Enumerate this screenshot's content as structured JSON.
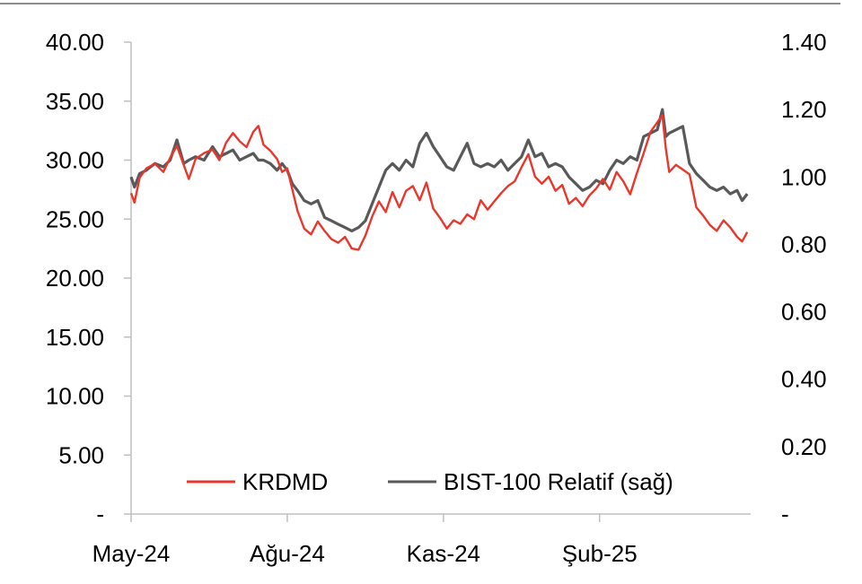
{
  "chart_data": {
    "type": "line",
    "title": "",
    "xlabel": "",
    "ylabel": "",
    "grid": false,
    "legend_position": "bottom",
    "x_ticks": [
      "May-24",
      "Ağu-24",
      "Kas-24",
      "Şub-25"
    ],
    "x_tick_dates": [
      "2024-05-01",
      "2024-08-01",
      "2024-11-01",
      "2025-02-01"
    ],
    "x_range": [
      "2024-05-01",
      "2025-05-01"
    ],
    "y_left": {
      "range": [
        0,
        40
      ],
      "tick_values": [
        0,
        5,
        10,
        15,
        20,
        25,
        30,
        35,
        40
      ],
      "tick_labels": [
        "-",
        "5.00",
        "10.00",
        "15.00",
        "20.00",
        "25.00",
        "30.00",
        "35.00",
        "40.00"
      ]
    },
    "y_right": {
      "range": [
        0,
        1.4
      ],
      "tick_values": [
        0,
        0.2,
        0.4,
        0.6,
        0.8,
        1.0,
        1.2,
        1.4
      ],
      "tick_labels": [
        "-",
        "0.20",
        "0.40",
        "0.60",
        "0.80",
        "1.00",
        "1.20",
        "1.40"
      ]
    },
    "series": [
      {
        "name": "KRDMD",
        "axis": "left",
        "color": "#e8372c",
        "points": [
          [
            "2024-05-01",
            27.2
          ],
          [
            "2024-05-03",
            26.4
          ],
          [
            "2024-05-06",
            28.5
          ],
          [
            "2024-05-10",
            29.3
          ],
          [
            "2024-05-15",
            29.7
          ],
          [
            "2024-05-20",
            29.0
          ],
          [
            "2024-05-24",
            30.2
          ],
          [
            "2024-05-28",
            31.2
          ],
          [
            "2024-06-01",
            29.6
          ],
          [
            "2024-06-04",
            28.4
          ],
          [
            "2024-06-08",
            30.1
          ],
          [
            "2024-06-13",
            30.6
          ],
          [
            "2024-06-18",
            30.9
          ],
          [
            "2024-06-22",
            30.0
          ],
          [
            "2024-06-26",
            31.5
          ],
          [
            "2024-06-30",
            32.3
          ],
          [
            "2024-07-04",
            31.6
          ],
          [
            "2024-07-08",
            31.1
          ],
          [
            "2024-07-12",
            32.4
          ],
          [
            "2024-07-15",
            32.9
          ],
          [
            "2024-07-18",
            31.3
          ],
          [
            "2024-07-22",
            30.8
          ],
          [
            "2024-07-26",
            30.1
          ],
          [
            "2024-07-29",
            29.0
          ],
          [
            "2024-08-01",
            29.3
          ],
          [
            "2024-08-04",
            27.5
          ],
          [
            "2024-08-07",
            25.7
          ],
          [
            "2024-08-11",
            24.2
          ],
          [
            "2024-08-15",
            23.7
          ],
          [
            "2024-08-19",
            24.8
          ],
          [
            "2024-08-23",
            24.0
          ],
          [
            "2024-08-27",
            23.3
          ],
          [
            "2024-08-31",
            23.0
          ],
          [
            "2024-09-04",
            23.5
          ],
          [
            "2024-09-08",
            22.5
          ],
          [
            "2024-09-12",
            22.4
          ],
          [
            "2024-09-16",
            23.6
          ],
          [
            "2024-09-20",
            25.2
          ],
          [
            "2024-09-24",
            26.5
          ],
          [
            "2024-09-28",
            25.6
          ],
          [
            "2024-10-02",
            27.3
          ],
          [
            "2024-10-06",
            26.0
          ],
          [
            "2024-10-10",
            27.4
          ],
          [
            "2024-10-14",
            27.8
          ],
          [
            "2024-10-18",
            26.6
          ],
          [
            "2024-10-22",
            28.1
          ],
          [
            "2024-10-26",
            25.9
          ],
          [
            "2024-10-30",
            25.1
          ],
          [
            "2024-11-03",
            24.2
          ],
          [
            "2024-11-07",
            24.9
          ],
          [
            "2024-11-11",
            24.6
          ],
          [
            "2024-11-15",
            25.4
          ],
          [
            "2024-11-19",
            25.0
          ],
          [
            "2024-11-23",
            26.6
          ],
          [
            "2024-11-27",
            25.8
          ],
          [
            "2024-12-01",
            26.5
          ],
          [
            "2024-12-05",
            27.2
          ],
          [
            "2024-12-09",
            27.8
          ],
          [
            "2024-12-13",
            28.2
          ],
          [
            "2024-12-17",
            29.4
          ],
          [
            "2024-12-21",
            30.5
          ],
          [
            "2024-12-25",
            28.6
          ],
          [
            "2024-12-29",
            28.0
          ],
          [
            "2025-01-02",
            28.6
          ],
          [
            "2025-01-06",
            27.4
          ],
          [
            "2025-01-10",
            27.9
          ],
          [
            "2025-01-14",
            26.3
          ],
          [
            "2025-01-18",
            26.8
          ],
          [
            "2025-01-22",
            26.1
          ],
          [
            "2025-01-26",
            27.0
          ],
          [
            "2025-01-30",
            27.6
          ],
          [
            "2025-02-03",
            28.4
          ],
          [
            "2025-02-07",
            27.5
          ],
          [
            "2025-02-11",
            29.0
          ],
          [
            "2025-02-15",
            28.2
          ],
          [
            "2025-02-19",
            27.1
          ],
          [
            "2025-02-23",
            28.9
          ],
          [
            "2025-02-27",
            30.6
          ],
          [
            "2025-03-03",
            32.4
          ],
          [
            "2025-03-07",
            33.2
          ],
          [
            "2025-03-10",
            33.8
          ],
          [
            "2025-03-12",
            31.0
          ],
          [
            "2025-03-14",
            29.0
          ],
          [
            "2025-03-18",
            29.6
          ],
          [
            "2025-03-22",
            29.2
          ],
          [
            "2025-03-26",
            28.8
          ],
          [
            "2025-03-30",
            26.0
          ],
          [
            "2025-04-03",
            25.3
          ],
          [
            "2025-04-07",
            24.5
          ],
          [
            "2025-04-11",
            24.0
          ],
          [
            "2025-04-15",
            24.9
          ],
          [
            "2025-04-19",
            24.3
          ],
          [
            "2025-04-23",
            23.5
          ],
          [
            "2025-04-26",
            23.1
          ],
          [
            "2025-04-29",
            23.9
          ]
        ]
      },
      {
        "name": "BIST-100 Relatif (sağ)",
        "axis": "right",
        "color": "#595959",
        "points": [
          [
            "2024-05-01",
            1.0
          ],
          [
            "2024-05-03",
            0.97
          ],
          [
            "2024-05-06",
            1.01
          ],
          [
            "2024-05-10",
            1.02
          ],
          [
            "2024-05-15",
            1.04
          ],
          [
            "2024-05-20",
            1.03
          ],
          [
            "2024-05-24",
            1.05
          ],
          [
            "2024-05-28",
            1.11
          ],
          [
            "2024-06-01",
            1.04
          ],
          [
            "2024-06-04",
            1.05
          ],
          [
            "2024-06-08",
            1.06
          ],
          [
            "2024-06-13",
            1.05
          ],
          [
            "2024-06-18",
            1.09
          ],
          [
            "2024-06-22",
            1.06
          ],
          [
            "2024-06-26",
            1.07
          ],
          [
            "2024-06-30",
            1.08
          ],
          [
            "2024-07-04",
            1.05
          ],
          [
            "2024-07-08",
            1.06
          ],
          [
            "2024-07-12",
            1.07
          ],
          [
            "2024-07-15",
            1.05
          ],
          [
            "2024-07-18",
            1.05
          ],
          [
            "2024-07-22",
            1.04
          ],
          [
            "2024-07-26",
            1.02
          ],
          [
            "2024-07-29",
            1.04
          ],
          [
            "2024-08-01",
            1.02
          ],
          [
            "2024-08-04",
            0.98
          ],
          [
            "2024-08-07",
            0.96
          ],
          [
            "2024-08-11",
            0.93
          ],
          [
            "2024-08-15",
            0.92
          ],
          [
            "2024-08-19",
            0.93
          ],
          [
            "2024-08-23",
            0.88
          ],
          [
            "2024-08-27",
            0.87
          ],
          [
            "2024-08-31",
            0.86
          ],
          [
            "2024-09-04",
            0.85
          ],
          [
            "2024-09-08",
            0.84
          ],
          [
            "2024-09-12",
            0.85
          ],
          [
            "2024-09-16",
            0.87
          ],
          [
            "2024-09-20",
            0.92
          ],
          [
            "2024-09-24",
            0.97
          ],
          [
            "2024-09-28",
            1.02
          ],
          [
            "2024-10-02",
            1.04
          ],
          [
            "2024-10-06",
            1.02
          ],
          [
            "2024-10-10",
            1.05
          ],
          [
            "2024-10-14",
            1.03
          ],
          [
            "2024-10-18",
            1.1
          ],
          [
            "2024-10-22",
            1.13
          ],
          [
            "2024-10-26",
            1.09
          ],
          [
            "2024-10-30",
            1.06
          ],
          [
            "2024-11-03",
            1.03
          ],
          [
            "2024-11-07",
            1.02
          ],
          [
            "2024-11-11",
            1.06
          ],
          [
            "2024-11-15",
            1.1
          ],
          [
            "2024-11-19",
            1.04
          ],
          [
            "2024-11-23",
            1.03
          ],
          [
            "2024-11-27",
            1.04
          ],
          [
            "2024-12-01",
            1.03
          ],
          [
            "2024-12-05",
            1.05
          ],
          [
            "2024-12-09",
            1.02
          ],
          [
            "2024-12-13",
            1.04
          ],
          [
            "2024-12-17",
            1.06
          ],
          [
            "2024-12-21",
            1.11
          ],
          [
            "2024-12-25",
            1.06
          ],
          [
            "2024-12-29",
            1.07
          ],
          [
            "2025-01-02",
            1.03
          ],
          [
            "2025-01-06",
            1.04
          ],
          [
            "2025-01-10",
            1.03
          ],
          [
            "2025-01-14",
            1.0
          ],
          [
            "2025-01-18",
            0.98
          ],
          [
            "2025-01-22",
            0.96
          ],
          [
            "2025-01-26",
            0.97
          ],
          [
            "2025-01-30",
            0.99
          ],
          [
            "2025-02-03",
            0.98
          ],
          [
            "2025-02-07",
            1.02
          ],
          [
            "2025-02-11",
            1.05
          ],
          [
            "2025-02-15",
            1.04
          ],
          [
            "2025-02-19",
            1.06
          ],
          [
            "2025-02-23",
            1.05
          ],
          [
            "2025-02-27",
            1.12
          ],
          [
            "2025-03-03",
            1.13
          ],
          [
            "2025-03-07",
            1.14
          ],
          [
            "2025-03-10",
            1.2
          ],
          [
            "2025-03-12",
            1.12
          ],
          [
            "2025-03-14",
            1.13
          ],
          [
            "2025-03-18",
            1.14
          ],
          [
            "2025-03-22",
            1.15
          ],
          [
            "2025-03-26",
            1.04
          ],
          [
            "2025-03-30",
            1.01
          ],
          [
            "2025-04-03",
            0.99
          ],
          [
            "2025-04-07",
            0.97
          ],
          [
            "2025-04-11",
            0.96
          ],
          [
            "2025-04-15",
            0.97
          ],
          [
            "2025-04-19",
            0.95
          ],
          [
            "2025-04-23",
            0.96
          ],
          [
            "2025-04-26",
            0.93
          ],
          [
            "2025-04-29",
            0.95
          ]
        ]
      }
    ]
  }
}
